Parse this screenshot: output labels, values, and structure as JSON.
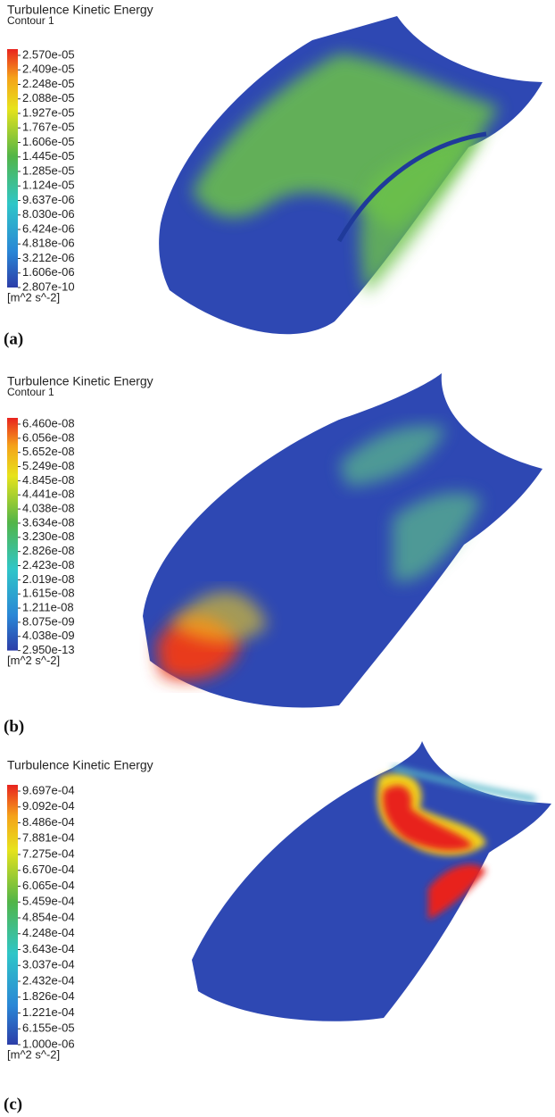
{
  "panels": [
    {
      "title": "Turbulence Kinetic Energy",
      "subtitle": "Contour 1",
      "legend_labels": [
        "2.570e-05",
        "2.409e-05",
        "2.248e-05",
        "2.088e-05",
        "1.927e-05",
        "1.767e-05",
        "1.606e-05",
        "1.445e-05",
        "1.285e-05",
        "1.124e-05",
        "9.637e-06",
        "8.030e-06",
        "6.424e-06",
        "4.818e-06",
        "3.212e-06",
        "1.606e-06",
        "2.807e-10"
      ],
      "unit": "[m^2 s^-2]",
      "label": "(a)"
    },
    {
      "title": "Turbulence Kinetic Energy",
      "subtitle": "Contour 1",
      "legend_labels": [
        "6.460e-08",
        "6.056e-08",
        "5.652e-08",
        "5.249e-08",
        "4.845e-08",
        "4.441e-08",
        "4.038e-08",
        "3.634e-08",
        "3.230e-08",
        "2.826e-08",
        "2.423e-08",
        "2.019e-08",
        "1.615e-08",
        "1.211e-08",
        "8.075e-09",
        "4.038e-09",
        "2.950e-13"
      ],
      "unit": "[m^2 s^-2]",
      "label": "(b)"
    },
    {
      "title": "Turbulence Kinetic Energy",
      "legend_labels": [
        "9.697e-04",
        "9.092e-04",
        "8.486e-04",
        "7.881e-04",
        "7.275e-04",
        "6.670e-04",
        "6.065e-04",
        "5.459e-04",
        "4.854e-04",
        "4.248e-04",
        "3.643e-04",
        "3.037e-04",
        "2.432e-04",
        "1.826e-04",
        "1.221e-04",
        "6.155e-05",
        "1.000e-06"
      ],
      "unit": "[m^2 s^-2]",
      "label": "(c)"
    }
  ]
}
